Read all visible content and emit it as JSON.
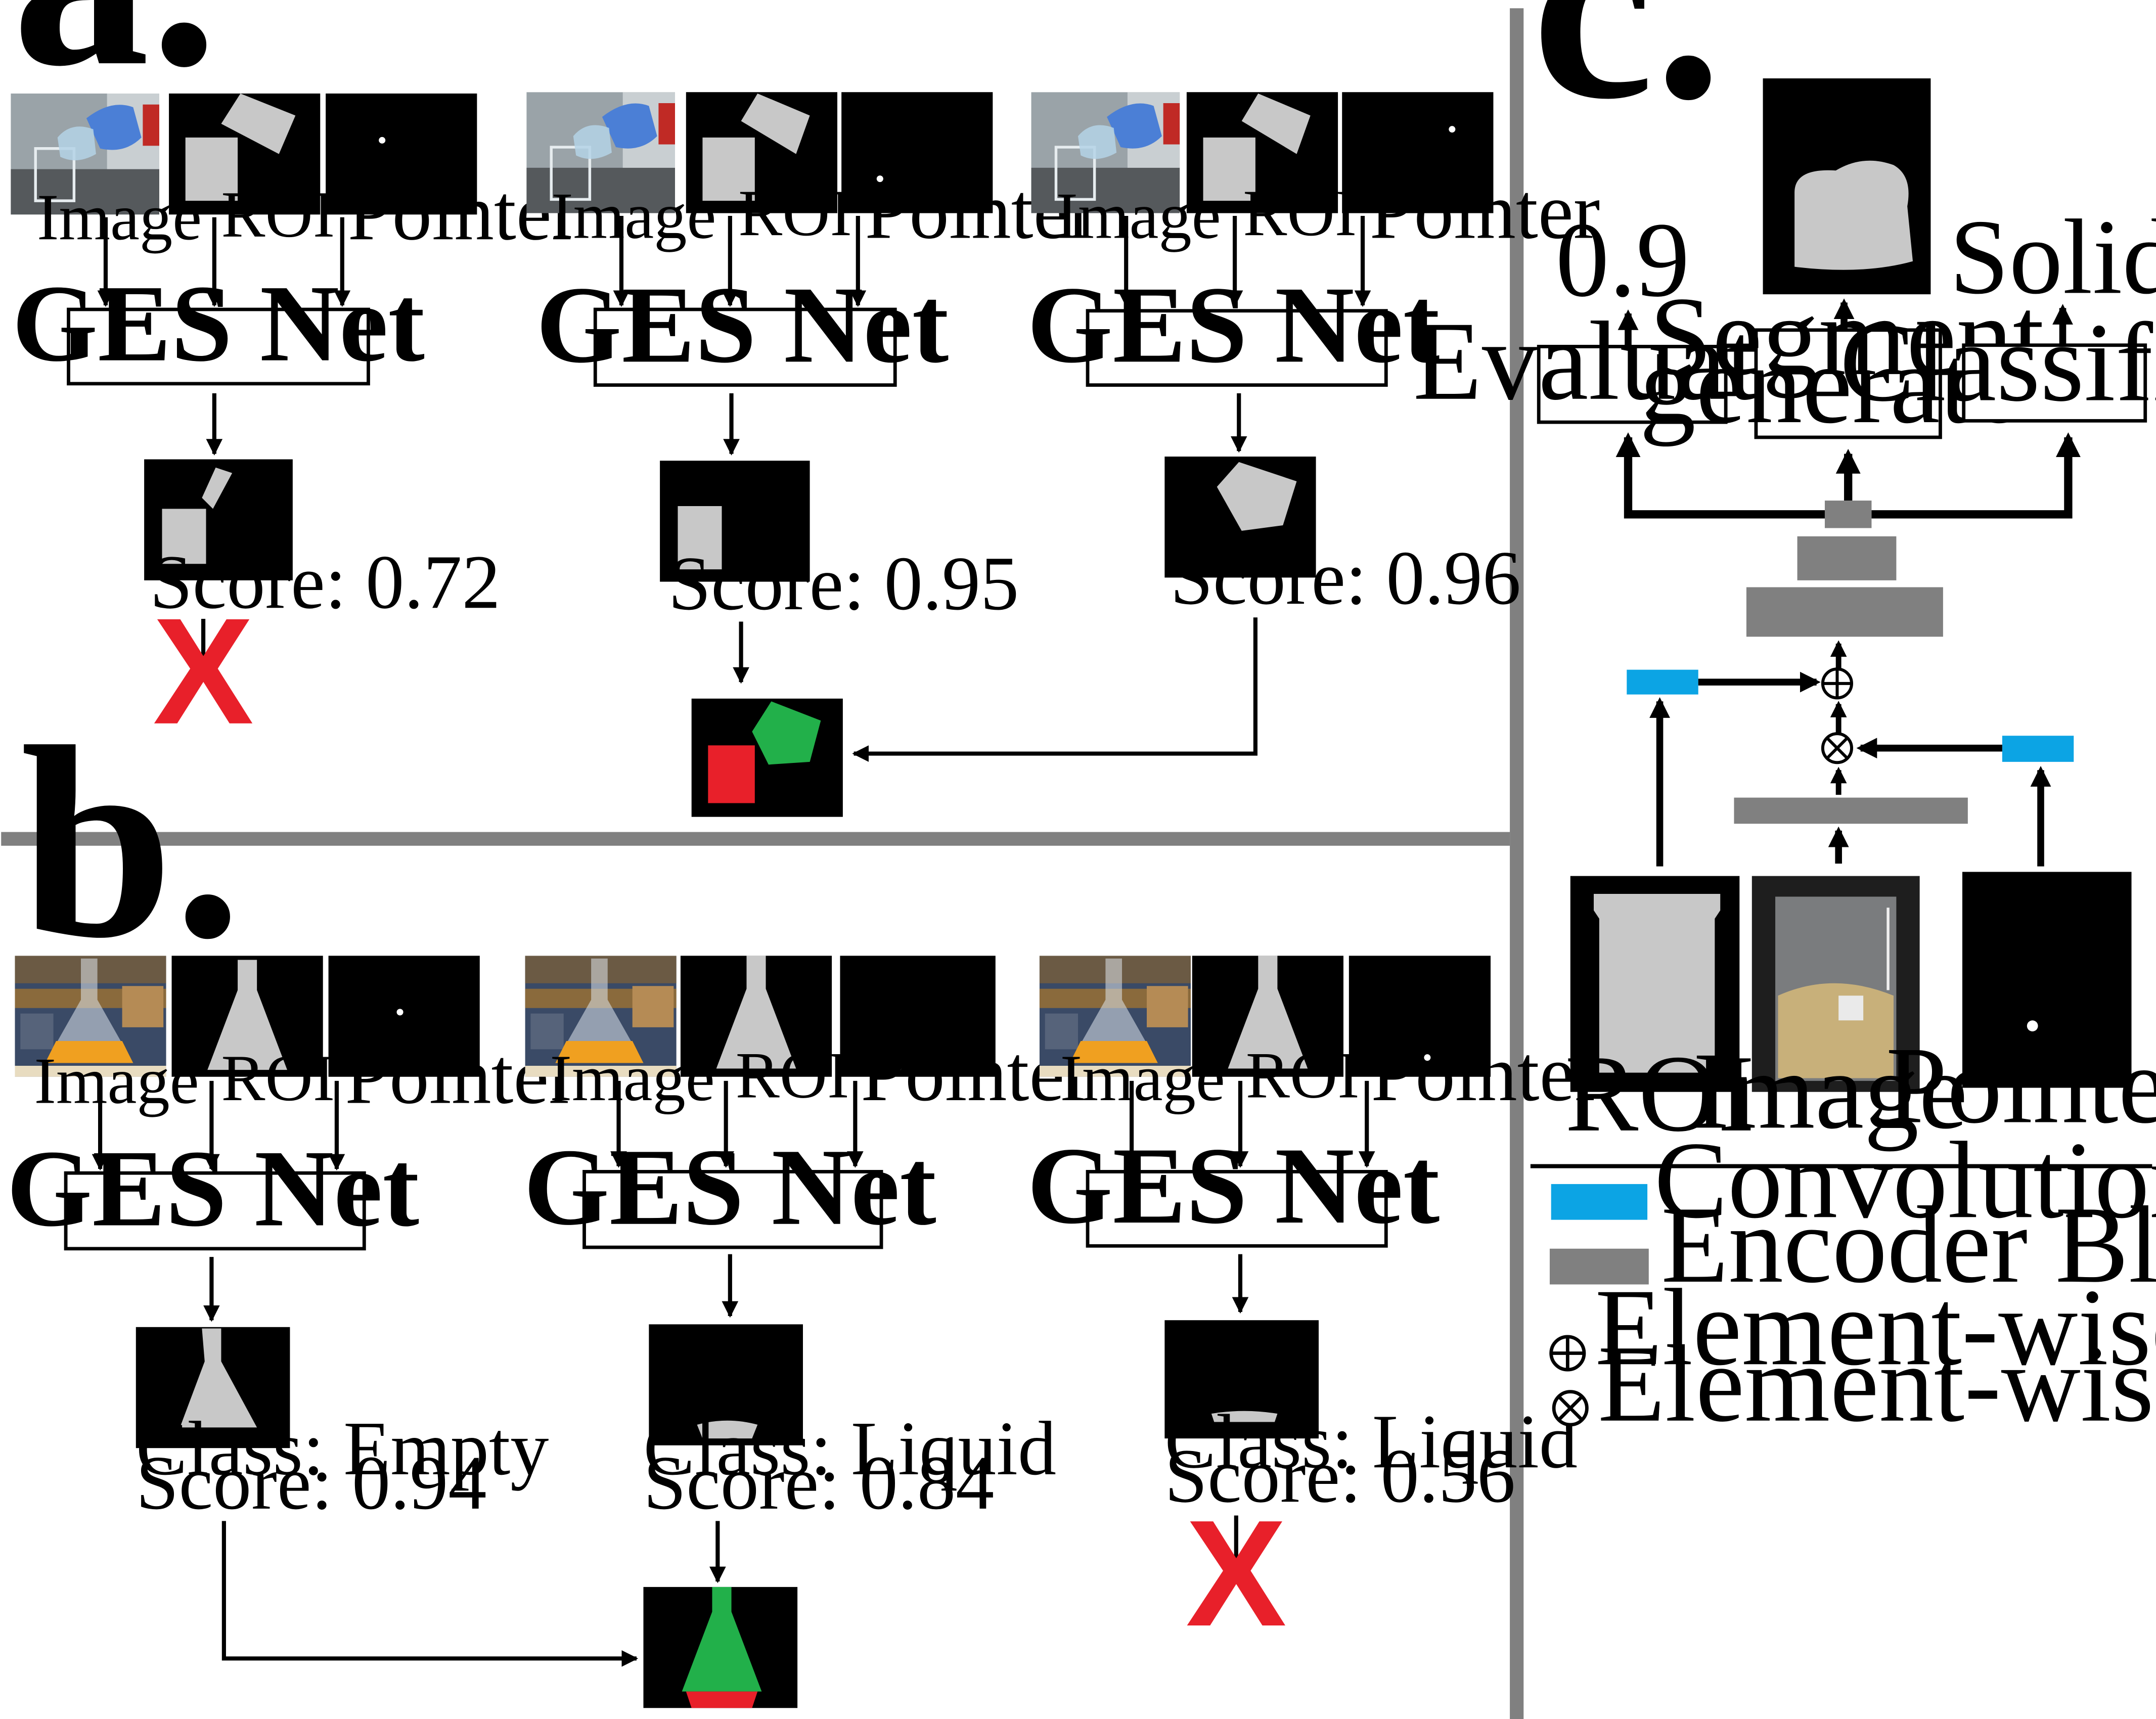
{
  "panels": {
    "a": {
      "letter": "a.",
      "columns": [
        {
          "inputs": [
            "Image",
            "ROI",
            "Pointer"
          ],
          "net": "GES Net",
          "score": "Score: 0.72",
          "outcome": "rejected"
        },
        {
          "inputs": [
            "Image",
            "ROI",
            "Pointer"
          ],
          "net": "GES Net",
          "score": "Score: 0.95",
          "outcome": "merged"
        },
        {
          "inputs": [
            "Image",
            "ROI",
            "Pointer"
          ],
          "net": "GES Net",
          "score": "Score: 0.96",
          "outcome": "merged"
        }
      ],
      "reject_mark": "X"
    },
    "b": {
      "letter": "b.",
      "columns": [
        {
          "inputs": [
            "Image",
            "ROI",
            "Pointer"
          ],
          "net": "GES Net",
          "cls": "Class: Empty",
          "score": "Score: 0.94",
          "outcome": "merged"
        },
        {
          "inputs": [
            "Image",
            "ROI",
            "Pointer"
          ],
          "net": "GES Net",
          "cls": "Class: Liquid",
          "score": "Score: 0.84",
          "outcome": "merged"
        },
        {
          "inputs": [
            "Image",
            "ROI",
            "Pointer"
          ],
          "net": "GES Net",
          "cls": "Class: Liquid",
          "score": "Score: 0.56",
          "outcome": "rejected"
        }
      ],
      "reject_mark": "X"
    },
    "c": {
      "letter": "c.",
      "outputs": {
        "score": "0.9",
        "cls": "Solid"
      },
      "heads": {
        "evaluator": "Evaluator",
        "segment_1": "Segment",
        "segment_2": "generator",
        "classifier": "Classifier"
      },
      "inputs": {
        "roi": "ROI",
        "image": "Image",
        "pointer": "Pointer"
      },
      "legend": {
        "conv": "Convolution Layer",
        "encoder": "Encoder Block",
        "add": "Element-wise addition",
        "mul": "Element-wise multiplication"
      }
    }
  },
  "colors": {
    "conv_layer": "#0ca4e4",
    "encoder_block": "#808080",
    "divider": "#808080",
    "mask": "#c8c8c8",
    "fg_segment": "#22b04a",
    "bg_segment": "#e8202a",
    "reject": "#e8202a"
  }
}
